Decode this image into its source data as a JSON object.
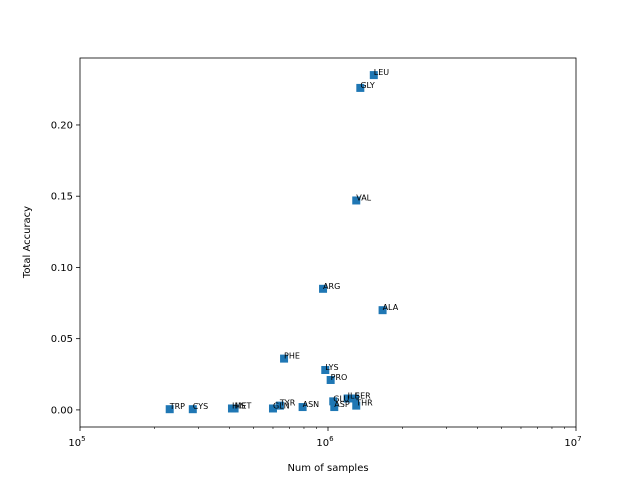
{
  "chart_data": {
    "type": "scatter",
    "title": "",
    "xlabel": "Num of samples",
    "ylabel": "Total Accuracy",
    "xscale": "log",
    "xlim": [
      100000,
      10000000
    ],
    "ylim": [
      -0.012,
      0.247
    ],
    "grid": false,
    "marker": "square",
    "color": "#1f77b4",
    "x_ticks": [
      {
        "base": "10",
        "exp": "5",
        "value": 100000
      },
      {
        "base": "10",
        "exp": "6",
        "value": 1000000
      },
      {
        "base": "10",
        "exp": "7",
        "value": 10000000
      }
    ],
    "y_ticks": [
      {
        "label": "0.00",
        "value": 0.0
      },
      {
        "label": "0.05",
        "value": 0.05
      },
      {
        "label": "0.10",
        "value": 0.1
      },
      {
        "label": "0.15",
        "value": 0.15
      },
      {
        "label": "0.20",
        "value": 0.2
      }
    ],
    "points": [
      {
        "label": "LEU",
        "x": 1530000,
        "y": 0.235
      },
      {
        "label": "GLY",
        "x": 1350000,
        "y": 0.226
      },
      {
        "label": "VAL",
        "x": 1300000,
        "y": 0.147
      },
      {
        "label": "ARG",
        "x": 955000,
        "y": 0.085
      },
      {
        "label": "ALA",
        "x": 1660000,
        "y": 0.07
      },
      {
        "label": "PHE",
        "x": 665000,
        "y": 0.036
      },
      {
        "label": "LYS",
        "x": 975000,
        "y": 0.028
      },
      {
        "label": "PRO",
        "x": 1025000,
        "y": 0.021
      },
      {
        "label": "GLU",
        "x": 1050000,
        "y": 0.006
      },
      {
        "label": "ILE",
        "x": 1200000,
        "y": 0.008
      },
      {
        "label": "SER",
        "x": 1285000,
        "y": 0.008
      },
      {
        "label": "ASP",
        "x": 1060000,
        "y": 0.002
      },
      {
        "label": "THR",
        "x": 1300000,
        "y": 0.003
      },
      {
        "label": "TYR",
        "x": 640000,
        "y": 0.003
      },
      {
        "label": "ASN",
        "x": 790000,
        "y": 0.002
      },
      {
        "label": "GLN",
        "x": 600000,
        "y": 0.001
      },
      {
        "label": "MET",
        "x": 420000,
        "y": 0.001
      },
      {
        "label": "HIS",
        "x": 410000,
        "y": 0.001
      },
      {
        "label": "CYS",
        "x": 285000,
        "y": 0.0005
      },
      {
        "label": "TRP",
        "x": 230000,
        "y": 0.0005
      }
    ]
  }
}
